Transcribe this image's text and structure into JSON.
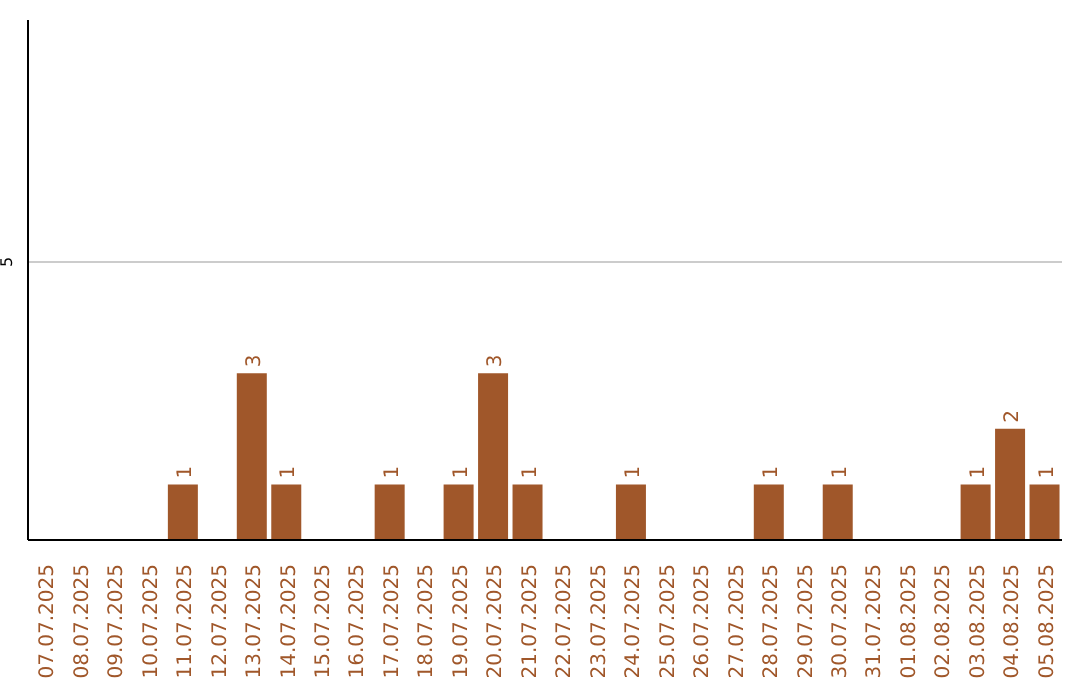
{
  "chart_data": {
    "type": "bar",
    "categories": [
      "07.07.2025",
      "08.07.2025",
      "09.07.2025",
      "10.07.2025",
      "11.07.2025",
      "12.07.2025",
      "13.07.2025",
      "14.07.2025",
      "15.07.2025",
      "16.07.2025",
      "17.07.2025",
      "18.07.2025",
      "19.07.2025",
      "20.07.2025",
      "21.07.2025",
      "22.07.2025",
      "23.07.2025",
      "24.07.2025",
      "25.07.2025",
      "26.07.2025",
      "27.07.2025",
      "28.07.2025",
      "29.07.2025",
      "30.07.2025",
      "31.07.2025",
      "01.08.2025",
      "02.08.2025",
      "03.08.2025",
      "04.08.2025",
      "05.08.2025"
    ],
    "values": [
      0,
      0,
      0,
      0,
      1,
      0,
      3,
      1,
      0,
      0,
      1,
      0,
      1,
      3,
      1,
      0,
      0,
      1,
      0,
      0,
      0,
      1,
      0,
      1,
      0,
      0,
      0,
      1,
      2,
      1
    ],
    "value_labels": [
      null,
      null,
      null,
      null,
      "1",
      null,
      "3",
      "1",
      null,
      null,
      "1",
      null,
      "1",
      "3",
      "1",
      null,
      null,
      "1",
      null,
      null,
      null,
      "1",
      null,
      "1",
      null,
      null,
      null,
      "1",
      "2",
      "1"
    ],
    "color": "#a0572a",
    "ylim": [
      0,
      9.35
    ],
    "yticks": [
      5
    ],
    "grid": "y"
  }
}
